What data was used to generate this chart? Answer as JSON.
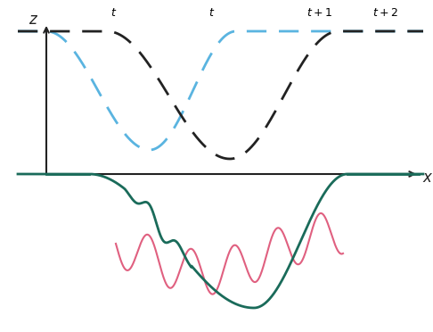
{
  "bg_color": "#ffffff",
  "axis_color": "#222222",
  "blue_dash_color": "#5ab4e0",
  "black_dash_color": "#222222",
  "teal_color": "#1a6b5a",
  "pink_color": "#e06080",
  "xaxis_line_color": "#1a6b5a",
  "xlabel": "$x$",
  "zlabel": "$z$",
  "top_labels": [
    "$t$",
    "$t$",
    "$t+1$",
    "$t+2$"
  ],
  "figsize": [
    4.86,
    3.72
  ],
  "dpi": 100
}
